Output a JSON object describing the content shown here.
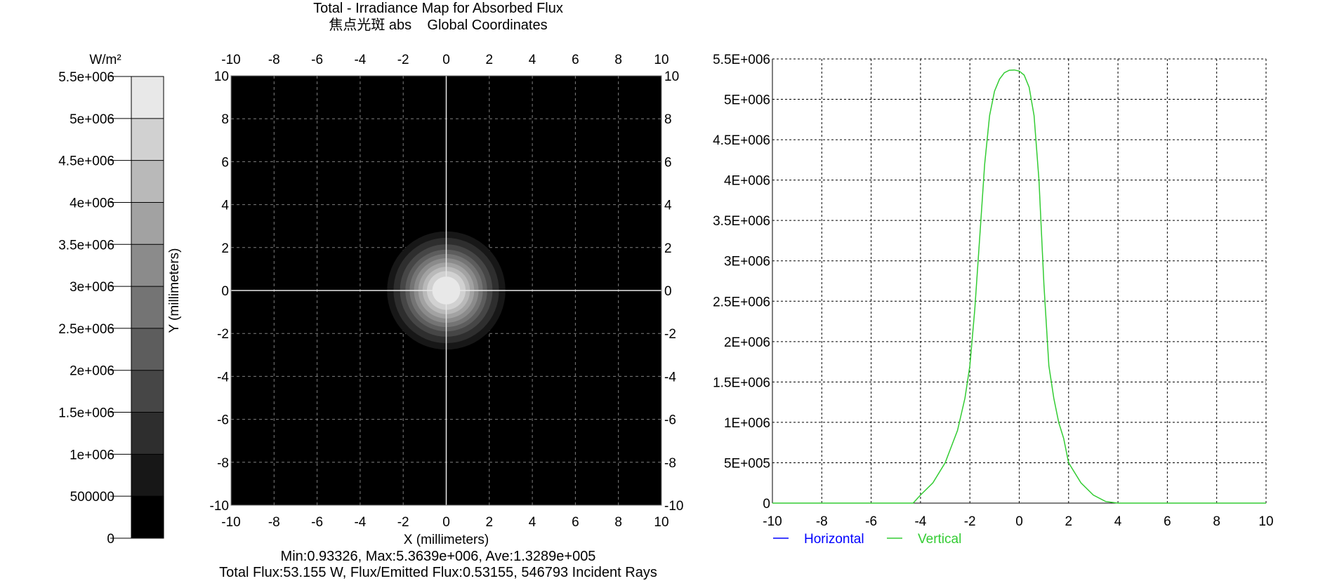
{
  "header": {
    "title": "Total - Irradiance Map for Absorbed Flux",
    "subtitle": "焦点光斑 abs    Global Coordinates"
  },
  "footer": {
    "stats": "Min:0.93326, Max:5.3639e+006, Ave:1.3289e+005",
    "flux": "Total Flux:53.155 W, Flux/Emitted Flux:0.53155, 546793 Incident Rays"
  },
  "colors": {
    "vertical": "#33cc33",
    "horizontal": "#0000ff",
    "map_background": "#000000",
    "grid": "#7f7f7f"
  },
  "chart_data": [
    {
      "type": "colorbar",
      "unit_label": "W/m²",
      "tick_labels": [
        "0",
        "500000",
        "1e+006",
        "1.5e+006",
        "2e+006",
        "2.5e+006",
        "3e+006",
        "3.5e+006",
        "4e+006",
        "4.5e+006",
        "5e+006",
        "5.5e+006"
      ],
      "tick_values": [
        0,
        500000,
        1000000,
        1500000,
        2000000,
        2500000,
        3000000,
        3500000,
        4000000,
        4500000,
        5000000,
        5500000
      ],
      "range": [
        0,
        5500000
      ],
      "levels": 11
    },
    {
      "type": "heatmap",
      "xlabel": "X (millimeters)",
      "ylabel": "Y (millimeters)",
      "xlim": [
        -10,
        10
      ],
      "ylim": [
        -10,
        10
      ],
      "xticks": [
        "-10",
        "-8",
        "-6",
        "-4",
        "-2",
        "0",
        "2",
        "4",
        "6",
        "8",
        "10"
      ],
      "yticks": [
        "-10",
        "-8",
        "-6",
        "-4",
        "-2",
        "0",
        "2",
        "4",
        "6",
        "8",
        "10"
      ],
      "spot_center": [
        0,
        0
      ],
      "peak": 5363900,
      "spot_profile": [
        {
          "r": 2.75,
          "level": 1
        },
        {
          "r": 2.45,
          "level": 2
        },
        {
          "r": 2.15,
          "level": 3
        },
        {
          "r": 1.9,
          "level": 4
        },
        {
          "r": 1.7,
          "level": 5
        },
        {
          "r": 1.5,
          "level": 6
        },
        {
          "r": 1.3,
          "level": 7
        },
        {
          "r": 1.1,
          "level": 8
        },
        {
          "r": 0.9,
          "level": 9
        },
        {
          "r": 0.65,
          "level": 10
        }
      ]
    },
    {
      "type": "line",
      "xlim": [
        -10,
        10
      ],
      "ylim": [
        0,
        5500000
      ],
      "xticks": [
        "-10",
        "-8",
        "-6",
        "-4",
        "-2",
        "0",
        "2",
        "4",
        "6",
        "8",
        "10"
      ],
      "yticks": [
        "0",
        "5E+005",
        "1E+006",
        "1.5E+006",
        "2E+006",
        "2.5E+006",
        "3E+006",
        "3.5E+006",
        "4E+006",
        "4.5E+006",
        "5E+006",
        "5.5E+006"
      ],
      "ytick_values": [
        0,
        500000,
        1000000,
        1500000,
        2000000,
        2500000,
        3000000,
        3500000,
        4000000,
        4500000,
        5000000,
        5500000
      ],
      "grid": true,
      "legend": "bottom-left",
      "series": [
        {
          "name": "Horizontal",
          "x": [],
          "y": []
        },
        {
          "name": "Vertical",
          "x": [
            -10,
            -4.3,
            -4,
            -3.5,
            -3,
            -2.5,
            -2.2,
            -2,
            -1.8,
            -1.6,
            -1.4,
            -1.2,
            -1,
            -0.8,
            -0.6,
            -0.4,
            -0.2,
            0,
            0.2,
            0.4,
            0.6,
            0.8,
            1,
            1.2,
            1.4,
            1.6,
            1.8,
            2,
            2.5,
            3,
            3.5,
            4,
            10
          ],
          "y": [
            0,
            0,
            100000,
            250000,
            500000,
            900000,
            1300000,
            1700000,
            2400000,
            3300000,
            4200000,
            4800000,
            5100000,
            5250000,
            5330000,
            5360000,
            5363900,
            5350000,
            5300000,
            5150000,
            4800000,
            4000000,
            2700000,
            1700000,
            1300000,
            1000000,
            800000,
            500000,
            250000,
            100000,
            20000,
            0,
            0
          ]
        }
      ]
    }
  ]
}
